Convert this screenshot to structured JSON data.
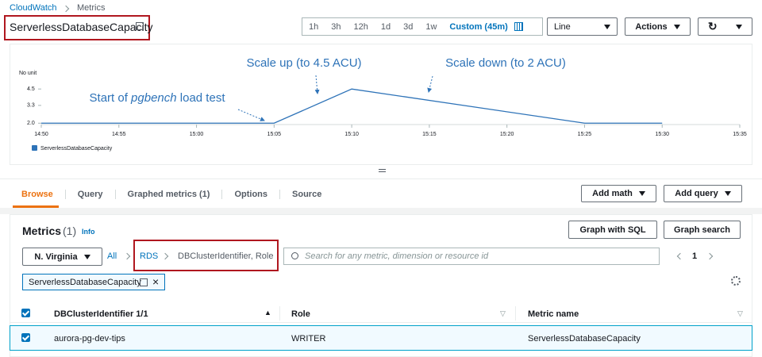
{
  "breadcrumb": [
    "CloudWatch",
    "Metrics"
  ],
  "header": {
    "title": "ServerlessDatabaseCapacity",
    "time_ranges": [
      "1h",
      "3h",
      "12h",
      "1d",
      "3d",
      "1w",
      "Custom (45m)"
    ],
    "view": "Line",
    "actions": "Actions"
  },
  "chart_data": {
    "type": "line",
    "y_label": "No unit",
    "x": [
      "14:50",
      "15:05",
      "15:10",
      "15:25",
      "15:30"
    ],
    "series": [
      {
        "name": "ServerlessDatabaseCapacity",
        "color": "#2e73b8",
        "values": [
          2,
          2,
          4.5,
          2,
          2
        ]
      }
    ],
    "xlim": [
      "14:50",
      "15:35"
    ],
    "xticks": [
      "14:50",
      "14:55",
      "15:00",
      "15:05",
      "15:10",
      "15:15",
      "15:20",
      "15:25",
      "15:30",
      "15:35"
    ],
    "ylim": [
      1.9,
      4.8
    ],
    "yticks": [
      {
        "value": 2,
        "label": "2.0"
      },
      3.3,
      4.5
    ],
    "grid": false,
    "legend": "bottom-left",
    "annotations": [
      {
        "text": [
          "Start of ",
          "pgbench",
          " load test"
        ]
      },
      {
        "text": [
          "Scale up (to 4.5 ACU)"
        ]
      },
      {
        "text": [
          "Scale down (to 2 ACU)"
        ]
      }
    ]
  },
  "tabs": [
    "Browse",
    "Query",
    "Graphed metrics (1)",
    "Options",
    "Source"
  ],
  "tab_buttons": [
    "Add math",
    "Add query"
  ],
  "metrics": {
    "title": "Metrics",
    "count": "(1)",
    "info": "Info",
    "buttons": [
      "Graph with SQL",
      "Graph search"
    ],
    "region": "N. Virginia",
    "path": [
      "All",
      "RDS",
      "DBClusterIdentifier, Role"
    ],
    "search": "Search for any metric, dimension or resource id",
    "page": "1",
    "chip": "ServerlessDatabaseCapacity"
  },
  "table": {
    "headers": [
      "DBClusterIdentifier 1/1",
      "Role",
      "Metric name"
    ],
    "rows": [
      [
        "aurora-pg-dev-tips",
        "WRITER",
        "ServerlessDatabaseCapacity"
      ]
    ]
  }
}
